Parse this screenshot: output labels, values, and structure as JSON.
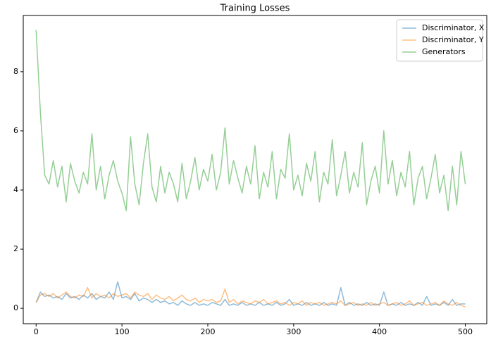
{
  "chart_data": {
    "type": "line",
    "title": "Training Losses",
    "x": [
      0,
      5,
      10,
      15,
      20,
      25,
      30,
      35,
      40,
      45,
      50,
      55,
      60,
      65,
      70,
      75,
      80,
      85,
      90,
      95,
      100,
      105,
      110,
      115,
      120,
      125,
      130,
      135,
      140,
      145,
      150,
      155,
      160,
      165,
      170,
      175,
      180,
      185,
      190,
      195,
      200,
      205,
      210,
      215,
      220,
      225,
      230,
      235,
      240,
      245,
      250,
      255,
      260,
      265,
      270,
      275,
      280,
      285,
      290,
      295,
      300,
      305,
      310,
      315,
      320,
      325,
      330,
      335,
      340,
      345,
      350,
      355,
      360,
      365,
      370,
      375,
      380,
      385,
      390,
      395,
      400,
      405,
      410,
      415,
      420,
      425,
      430,
      435,
      440,
      445,
      450,
      455,
      460,
      465,
      470,
      475,
      480,
      485,
      490,
      495,
      500
    ],
    "series": [
      {
        "name": "Discriminator, X",
        "color": "#1f77b4",
        "values": [
          0.2,
          0.55,
          0.4,
          0.45,
          0.35,
          0.4,
          0.3,
          0.5,
          0.35,
          0.4,
          0.3,
          0.45,
          0.35,
          0.5,
          0.3,
          0.4,
          0.35,
          0.55,
          0.3,
          0.9,
          0.35,
          0.4,
          0.3,
          0.5,
          0.25,
          0.35,
          0.3,
          0.2,
          0.3,
          0.2,
          0.25,
          0.15,
          0.2,
          0.1,
          0.25,
          0.15,
          0.1,
          0.2,
          0.1,
          0.15,
          0.1,
          0.2,
          0.15,
          0.1,
          0.3,
          0.1,
          0.15,
          0.1,
          0.2,
          0.1,
          0.15,
          0.1,
          0.2,
          0.1,
          0.15,
          0.1,
          0.2,
          0.1,
          0.15,
          0.3,
          0.1,
          0.15,
          0.1,
          0.2,
          0.1,
          0.15,
          0.1,
          0.2,
          0.1,
          0.15,
          0.1,
          0.7,
          0.1,
          0.2,
          0.1,
          0.15,
          0.1,
          0.2,
          0.1,
          0.15,
          0.1,
          0.55,
          0.1,
          0.15,
          0.1,
          0.2,
          0.1,
          0.15,
          0.1,
          0.2,
          0.1,
          0.4,
          0.1,
          0.15,
          0.1,
          0.2,
          0.1,
          0.3,
          0.1,
          0.15,
          0.15
        ]
      },
      {
        "name": "Discriminator, Y",
        "color": "#ff7f0e",
        "values": [
          0.2,
          0.45,
          0.5,
          0.4,
          0.5,
          0.35,
          0.45,
          0.55,
          0.4,
          0.35,
          0.45,
          0.4,
          0.7,
          0.35,
          0.5,
          0.4,
          0.45,
          0.35,
          0.5,
          0.4,
          0.45,
          0.5,
          0.35,
          0.55,
          0.45,
          0.4,
          0.5,
          0.3,
          0.45,
          0.35,
          0.3,
          0.4,
          0.25,
          0.35,
          0.45,
          0.3,
          0.25,
          0.35,
          0.2,
          0.3,
          0.25,
          0.3,
          0.2,
          0.25,
          0.65,
          0.2,
          0.3,
          0.15,
          0.25,
          0.2,
          0.15,
          0.25,
          0.2,
          0.3,
          0.15,
          0.2,
          0.25,
          0.15,
          0.2,
          0.1,
          0.2,
          0.15,
          0.25,
          0.1,
          0.2,
          0.15,
          0.2,
          0.1,
          0.15,
          0.2,
          0.15,
          0.25,
          0.1,
          0.15,
          0.2,
          0.1,
          0.15,
          0.1,
          0.2,
          0.1,
          0.15,
          0.2,
          0.1,
          0.15,
          0.2,
          0.1,
          0.15,
          0.25,
          0.1,
          0.15,
          0.2,
          0.1,
          0.15,
          0.2,
          0.1,
          0.25,
          0.15,
          0.1,
          0.2,
          0.1,
          0.05
        ]
      },
      {
        "name": "Generators",
        "color": "#2ca02c",
        "values": [
          9.4,
          6.6,
          4.5,
          4.2,
          5.0,
          4.1,
          4.8,
          3.6,
          4.9,
          4.3,
          3.9,
          4.6,
          4.2,
          5.9,
          4.0,
          4.8,
          3.7,
          4.5,
          5.0,
          4.3,
          3.9,
          3.3,
          5.8,
          4.2,
          3.5,
          4.9,
          5.9,
          4.1,
          3.6,
          4.8,
          3.9,
          4.6,
          4.2,
          3.6,
          4.9,
          3.7,
          4.3,
          5.1,
          4.0,
          4.7,
          4.3,
          5.2,
          4.0,
          4.6,
          6.1,
          4.2,
          5.0,
          4.4,
          3.9,
          4.8,
          4.2,
          5.5,
          3.7,
          4.6,
          4.1,
          5.3,
          3.7,
          4.7,
          4.4,
          5.9,
          4.0,
          4.5,
          3.8,
          4.9,
          4.3,
          5.3,
          3.6,
          4.6,
          4.2,
          5.7,
          3.8,
          4.5,
          5.3,
          3.9,
          4.6,
          4.1,
          5.6,
          3.5,
          4.3,
          4.8,
          3.9,
          6.0,
          4.2,
          5.0,
          3.8,
          4.6,
          4.1,
          5.3,
          3.5,
          4.4,
          4.8,
          3.7,
          4.4,
          5.2,
          3.9,
          4.5,
          3.3,
          4.8,
          3.5,
          5.3,
          4.2
        ]
      }
    ],
    "alpha": 0.5,
    "xlim": [
      -15,
      525
    ],
    "ylim": [
      -0.52,
      9.9
    ],
    "xticks": [
      0,
      100,
      200,
      300,
      400,
      500
    ],
    "yticks": [
      0,
      2,
      4,
      6,
      8
    ],
    "legend": "upper right"
  }
}
